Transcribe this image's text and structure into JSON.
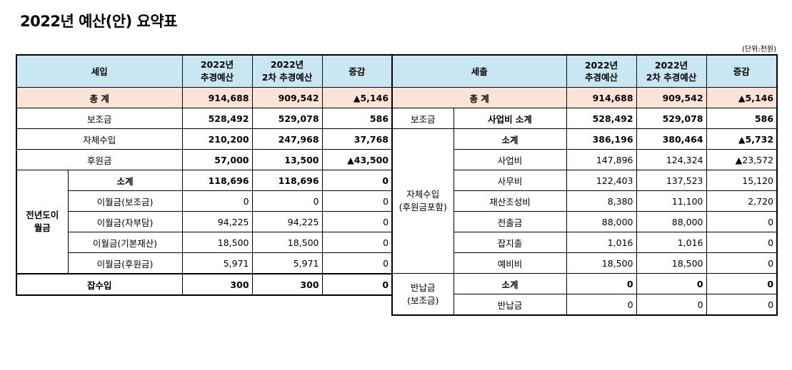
{
  "title": "2022년 예산(안) 요약표",
  "unit": "(단위:천원)",
  "left": {
    "headers": [
      "세입",
      "2022년\n추경예산",
      "2022년\n2차 추경예산",
      "증감"
    ],
    "total": {
      "label": "총 계",
      "v1": "914,688",
      "v2": "909,542",
      "diff": "▲5,146"
    },
    "rows": [
      {
        "label": "보조금",
        "v1": "528,492",
        "v2": "529,078",
        "diff": "586"
      },
      {
        "label": "자체수입",
        "v1": "210,200",
        "v2": "247,968",
        "diff": "37,768"
      },
      {
        "label": "후원금",
        "v1": "57,000",
        "v2": "13,500",
        "diff": "▲43,500"
      }
    ],
    "group_label": "전년도이\n월금",
    "group_rows": [
      {
        "label": "소계",
        "v1": "118,696",
        "v2": "118,696",
        "diff": "0"
      },
      {
        "label": "이월금(보조금)",
        "v1": "0",
        "v2": "0",
        "diff": "0"
      },
      {
        "label": "이월금(자부담)",
        "v1": "94,225",
        "v2": "94,225",
        "diff": "0"
      },
      {
        "label": "이월금(기본재산)",
        "v1": "18,500",
        "v2": "18,500",
        "diff": "0"
      },
      {
        "label": "이월금(후원금)",
        "v1": "5,971",
        "v2": "5,971",
        "diff": "0"
      }
    ],
    "misc": {
      "label": "잡수입",
      "v1": "300",
      "v2": "300",
      "diff": "0"
    }
  },
  "right": {
    "headers": [
      "세출",
      "2022년\n추경예산",
      "2022년\n2차 추경예산",
      "증감"
    ],
    "total": {
      "label": "총 계",
      "v1": "914,688",
      "v2": "909,542",
      "diff": "▲5,146"
    },
    "subsidy": {
      "cat": "보조금",
      "label": "사업비 소계",
      "v1": "528,492",
      "v2": "529,078",
      "diff": "586"
    },
    "self_cat": "자체수입\n(후원금포함)",
    "self_rows": [
      {
        "label": "소계",
        "v1": "386,196",
        "v2": "380,464",
        "diff": "▲5,732"
      },
      {
        "label": "사업비",
        "v1": "147,896",
        "v2": "124,324",
        "diff": "▲23,572"
      },
      {
        "label": "사무비",
        "v1": "122,403",
        "v2": "137,523",
        "diff": "15,120"
      },
      {
        "label": "재산조성비",
        "v1": "8,380",
        "v2": "11,100",
        "diff": "2,720"
      },
      {
        "label": "전출금",
        "v1": "88,000",
        "v2": "88,000",
        "diff": "0"
      },
      {
        "label": "잡지출",
        "v1": "1,016",
        "v2": "1,016",
        "diff": "0"
      },
      {
        "label": "예비비",
        "v1": "18,500",
        "v2": "18,500",
        "diff": "0"
      }
    ],
    "refund_cat": "반납금\n(보조금)",
    "refund_rows": [
      {
        "label": "소계",
        "v1": "0",
        "v2": "0",
        "diff": "0"
      },
      {
        "label": "반납금",
        "v1": "0",
        "v2": "0",
        "diff": "0"
      }
    ]
  }
}
